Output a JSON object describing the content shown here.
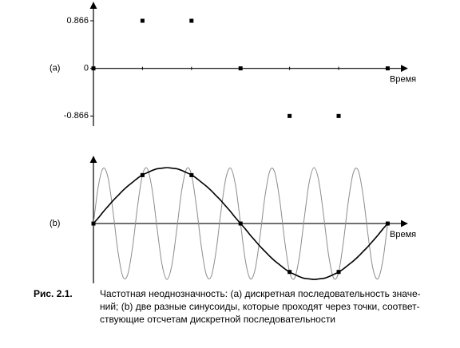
{
  "chart_data": [
    {
      "type": "scatter",
      "label": "(a)",
      "xlabel": "Время",
      "x": [
        0,
        1,
        2,
        3,
        4,
        5,
        6
      ],
      "values": [
        0,
        0.866,
        0.866,
        0,
        -0.866,
        -0.866,
        0
      ],
      "color": "#000000",
      "xlim": [
        0,
        6.4
      ],
      "ylim": [
        -1.05,
        1.2
      ],
      "yticks": [
        {
          "value": 0.866,
          "label": "0.866"
        },
        0,
        {
          "value": -0.866,
          "label": "-0.866"
        }
      ]
    },
    {
      "type": "line",
      "label": "(b)",
      "xlabel": "Время",
      "x": [
        0,
        0.1,
        0.2,
        0.3,
        0.4,
        0.5,
        0.6,
        0.7,
        0.8,
        0.9,
        1,
        1.1,
        1.2,
        1.3,
        1.4,
        1.5,
        1.6,
        1.7,
        1.8,
        1.9,
        2,
        2.1,
        2.2,
        2.3,
        2.4,
        2.5,
        2.6,
        2.7,
        2.8,
        2.9,
        3,
        3.1,
        3.2,
        3.3,
        3.4,
        3.5,
        3.6,
        3.7,
        3.8,
        3.9,
        4,
        4.1,
        4.2,
        4.3,
        4.4,
        4.5,
        4.6,
        4.7,
        4.8,
        4.9,
        5,
        5.1,
        5.2,
        5.3,
        5.4,
        5.5,
        5.6,
        5.7,
        5.8,
        5.9,
        6
      ],
      "series": [
        {
          "color": "#000000",
          "values": [
            0,
            0.1,
            0.21,
            0.31,
            0.41,
            0.5,
            0.59,
            0.67,
            0.74,
            0.81,
            0.87,
            0.91,
            0.95,
            0.98,
            0.99,
            1,
            0.99,
            0.98,
            0.95,
            0.91,
            0.87,
            0.81,
            0.74,
            0.67,
            0.59,
            0.5,
            0.41,
            0.31,
            0.21,
            0.1,
            0,
            -0.1,
            -0.21,
            -0.31,
            -0.41,
            -0.5,
            -0.59,
            -0.67,
            -0.74,
            -0.81,
            -0.87,
            -0.91,
            -0.95,
            -0.98,
            -0.99,
            -1,
            -0.99,
            -0.98,
            -0.95,
            -0.91,
            -0.87,
            -0.81,
            -0.74,
            -0.67,
            -0.59,
            -0.5,
            -0.41,
            -0.31,
            -0.21,
            -0.1,
            0
          ]
        },
        {
          "color": "#8c8c8c",
          "values": [
            0,
            0.67,
            0.99,
            0.81,
            0.21,
            -0.5,
            -0.95,
            -0.91,
            -0.41,
            0.31,
            0.87,
            0.98,
            0.59,
            -0.1,
            -0.74,
            -1,
            -0.74,
            -0.1,
            0.59,
            0.98,
            0.87,
            0.31,
            -0.41,
            -0.91,
            -0.95,
            -0.5,
            0.21,
            0.81,
            0.99,
            0.67,
            0,
            -0.67,
            -0.99,
            -0.81,
            -0.21,
            0.5,
            0.95,
            0.91,
            0.41,
            -0.31,
            -0.87,
            -0.98,
            -0.59,
            0.1,
            0.74,
            1,
            0.74,
            0.1,
            -0.59,
            -0.98,
            -0.87,
            -0.31,
            0.41,
            0.91,
            0.95,
            0.5,
            -0.21,
            -0.81,
            -0.99,
            -0.67,
            0
          ]
        }
      ],
      "points": {
        "x": [
          0,
          1,
          2,
          3,
          4,
          5,
          6
        ],
        "values": [
          0,
          0.866,
          0.866,
          0,
          -0.866,
          -0.866,
          0
        ],
        "color": "#000000"
      },
      "xlim": [
        0,
        6.4
      ],
      "ylim": [
        -1.07,
        1.2
      ]
    }
  ],
  "figure_caption": {
    "number": "Рис. 2.1.",
    "lines": [
      "Частотная неоднозначность: (a) дискретная последовательность значе-",
      "ний; (b) две разные синусоиды, которые проходят через точки, соответ-",
      "ствующие отсчетам дискретной последовательности"
    ]
  }
}
